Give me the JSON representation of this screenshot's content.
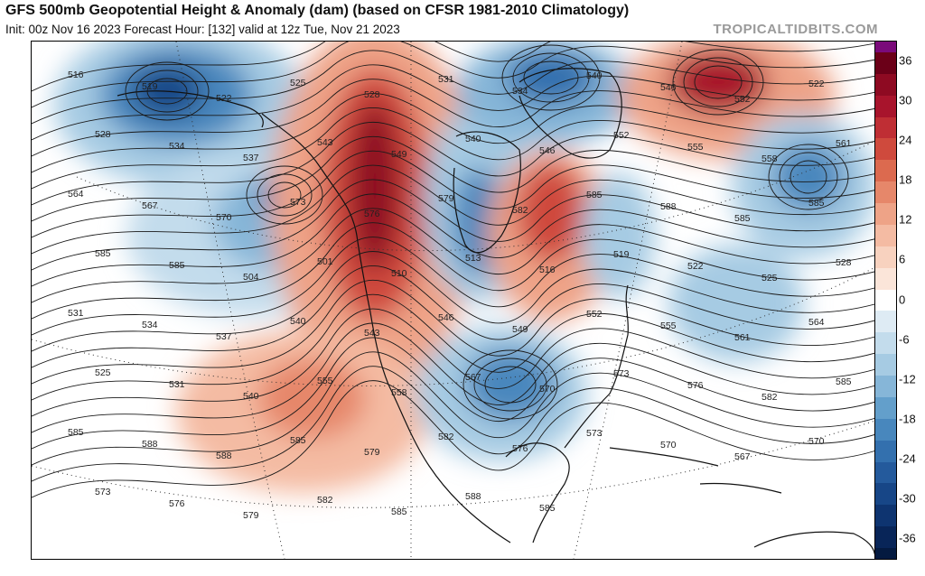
{
  "header": {
    "title": "GFS 500mb Geopotential Height & Anomaly (dam) (based on CFSR 1981-2010 Climatology)",
    "subtitle": "Init: 00z Nov 16 2023   Forecast Hour: [132]   valid at 12z Tue, Nov 21 2023",
    "watermark": "TROPICALTIDBITS.COM"
  },
  "map": {
    "variable": "500mb geopotential height (dam) with anomaly shading",
    "anomalies": [
      {
        "kind": "negative",
        "region": "Aleutians / North Pacific",
        "strength": -30
      },
      {
        "kind": "negative",
        "region": "Gulf of Alaska",
        "strength": -21
      },
      {
        "kind": "positive",
        "region": "Western Canada / Pacific Northwest ridge",
        "strength": 33
      },
      {
        "kind": "negative",
        "region": "Hudson Bay",
        "strength": -18
      },
      {
        "kind": "positive",
        "region": "Great Lakes / Ontario",
        "strength": 18
      },
      {
        "kind": "negative",
        "region": "Central United States trough",
        "strength": -18
      },
      {
        "kind": "positive",
        "region": "Greenland Sea / North Atlantic",
        "strength": 30
      },
      {
        "kind": "negative",
        "region": "Central North Atlantic",
        "strength": -21
      },
      {
        "kind": "negative",
        "region": "Western Atlantic",
        "strength": -12
      },
      {
        "kind": "positive",
        "region": "Southwest US / Mexico",
        "strength": 9
      }
    ],
    "contour_labels": [
      {
        "text": "516"
      },
      {
        "text": "519"
      },
      {
        "text": "522"
      },
      {
        "text": "525"
      },
      {
        "text": "528"
      },
      {
        "text": "531"
      },
      {
        "text": "534"
      },
      {
        "text": "540"
      },
      {
        "text": "546"
      },
      {
        "text": "552"
      },
      {
        "text": "522"
      },
      {
        "text": "528"
      },
      {
        "text": "534"
      },
      {
        "text": "537"
      },
      {
        "text": "543"
      },
      {
        "text": "549"
      },
      {
        "text": "540"
      },
      {
        "text": "546"
      },
      {
        "text": "552"
      },
      {
        "text": "555"
      },
      {
        "text": "558"
      },
      {
        "text": "561"
      },
      {
        "text": "564"
      },
      {
        "text": "567"
      },
      {
        "text": "570"
      },
      {
        "text": "573"
      },
      {
        "text": "576"
      },
      {
        "text": "579"
      },
      {
        "text": "582"
      },
      {
        "text": "585"
      },
      {
        "text": "588"
      },
      {
        "text": "585"
      },
      {
        "text": "585"
      },
      {
        "text": "585"
      },
      {
        "text": "585"
      },
      {
        "text": "504"
      },
      {
        "text": "501"
      },
      {
        "text": "510"
      },
      {
        "text": "513"
      },
      {
        "text": "516"
      },
      {
        "text": "519"
      },
      {
        "text": "522"
      },
      {
        "text": "525"
      },
      {
        "text": "528"
      },
      {
        "text": "531"
      },
      {
        "text": "534"
      },
      {
        "text": "537"
      },
      {
        "text": "540"
      },
      {
        "text": "543"
      },
      {
        "text": "546"
      },
      {
        "text": "549"
      },
      {
        "text": "552"
      },
      {
        "text": "555"
      },
      {
        "text": "561"
      },
      {
        "text": "564"
      },
      {
        "text": "525"
      },
      {
        "text": "531"
      },
      {
        "text": "540"
      },
      {
        "text": "555"
      },
      {
        "text": "558"
      },
      {
        "text": "567"
      },
      {
        "text": "570"
      },
      {
        "text": "573"
      },
      {
        "text": "576"
      },
      {
        "text": "582"
      },
      {
        "text": "585"
      },
      {
        "text": "585"
      },
      {
        "text": "588"
      },
      {
        "text": "588"
      },
      {
        "text": "585"
      },
      {
        "text": "579"
      },
      {
        "text": "582"
      },
      {
        "text": "576"
      },
      {
        "text": "573"
      },
      {
        "text": "570"
      },
      {
        "text": "567"
      },
      {
        "text": "570"
      },
      {
        "text": "573"
      },
      {
        "text": "576"
      },
      {
        "text": "579"
      },
      {
        "text": "582"
      },
      {
        "text": "585"
      },
      {
        "text": "588"
      },
      {
        "text": "585"
      }
    ]
  },
  "colorbar": {
    "ticks": [
      "36",
      "30",
      "24",
      "18",
      "12",
      "6",
      "0",
      "-6",
      "-12",
      "-18",
      "-24",
      "-30",
      "-36"
    ],
    "colors": {
      "pos_36": "#7a0a7a",
      "pos_33": "#6b0018",
      "pos_30": "#8e0a22",
      "pos_27": "#a8142c",
      "pos_24": "#bf2e34",
      "pos_21": "#cf4a3d",
      "pos_18": "#dc6a4f",
      "pos_15": "#e6876a",
      "pos_12": "#eea387",
      "pos_9": "#f4bba3",
      "pos_6": "#f8d2bf",
      "pos_3": "#fbe5d9",
      "zero": "#ffffff",
      "neg_3": "#deebf4",
      "neg_6": "#c3dcec",
      "neg_9": "#a6cbe3",
      "neg_12": "#86b6d8",
      "neg_15": "#639fcb",
      "neg_18": "#4887bd",
      "neg_21": "#3370ae",
      "neg_24": "#245a9c",
      "neg_27": "#174687",
      "neg_30": "#0e3470",
      "neg_33": "#082558",
      "neg_36": "#041a40"
    }
  }
}
